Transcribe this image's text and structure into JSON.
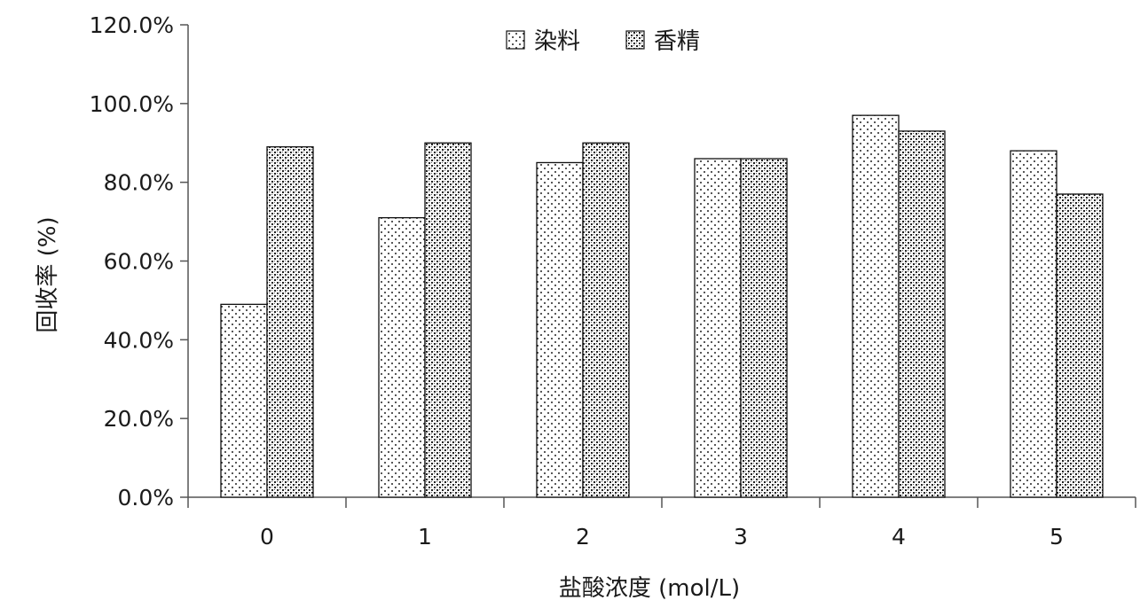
{
  "chart_data": {
    "type": "bar",
    "categories": [
      "0",
      "1",
      "2",
      "3",
      "4",
      "5"
    ],
    "series": [
      {
        "name": "染料",
        "values": [
          0.49,
          0.71,
          0.85,
          0.86,
          0.97,
          0.88
        ],
        "pattern": "dots"
      },
      {
        "name": "香精",
        "values": [
          0.89,
          0.9,
          0.9,
          0.86,
          0.93,
          0.77
        ],
        "pattern": "crosshatch"
      }
    ],
    "xlabel": "盐酸浓度 (mol/L)",
    "ylabel": "回收率 (%)",
    "ylim": [
      0,
      1.2
    ],
    "yticks": [
      "0.0%",
      "20.0%",
      "40.0%",
      "60.0%",
      "80.0%",
      "100.0%",
      "120.0%"
    ],
    "legend_position": "top-center",
    "grid": false,
    "colors": {
      "bar_outline": "#111111",
      "axis": "#555555",
      "text": "#1a1a1a"
    }
  }
}
